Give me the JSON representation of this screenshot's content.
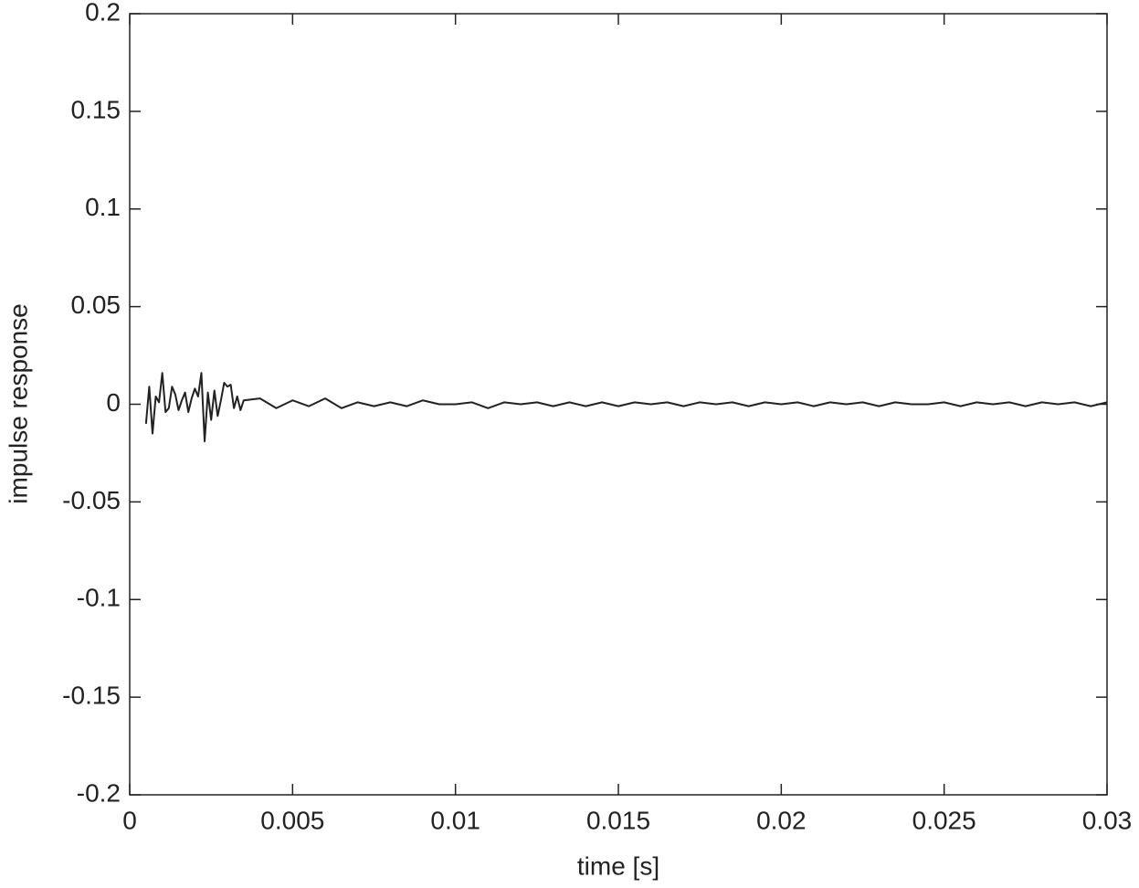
{
  "chart_data": {
    "type": "line",
    "x_label": "time [s]",
    "y_label": "impulse response",
    "x": [
      0.0005,
      0.0006,
      0.0007,
      0.0008,
      0.0009,
      0.001,
      0.0011,
      0.0012,
      0.0013,
      0.0014,
      0.0015,
      0.0016,
      0.0017,
      0.0018,
      0.0019,
      0.002,
      0.0021,
      0.0022,
      0.0023,
      0.0024,
      0.0025,
      0.0026,
      0.0027,
      0.0028,
      0.0029,
      0.003,
      0.0031,
      0.0032,
      0.0033,
      0.0034,
      0.0035,
      0.004,
      0.0045,
      0.005,
      0.0055,
      0.006,
      0.0065,
      0.007,
      0.0075,
      0.008,
      0.0085,
      0.009,
      0.0095,
      0.01,
      0.0105,
      0.011,
      0.0115,
      0.012,
      0.0125,
      0.013,
      0.0135,
      0.014,
      0.0145,
      0.015,
      0.0155,
      0.016,
      0.0165,
      0.017,
      0.0175,
      0.018,
      0.0185,
      0.019,
      0.0195,
      0.02,
      0.0205,
      0.021,
      0.0215,
      0.022,
      0.0225,
      0.023,
      0.0235,
      0.024,
      0.0245,
      0.025,
      0.0255,
      0.026,
      0.0265,
      0.027,
      0.0275,
      0.028,
      0.0285,
      0.029,
      0.0295,
      0.03
    ],
    "series": [
      {
        "color": "#222222",
        "values": [
          -0.01,
          0.009,
          -0.015,
          0.004,
          0.001,
          0.016,
          -0.004,
          -0.002,
          0.009,
          0.005,
          -0.003,
          0.002,
          0.006,
          -0.004,
          0.003,
          0.008,
          0.004,
          0.016,
          -0.019,
          0.006,
          -0.008,
          0.007,
          -0.006,
          0.002,
          0.011,
          0.009,
          0.01,
          -0.002,
          0.004,
          -0.003,
          0.002,
          0.003,
          -0.002,
          0.002,
          -0.001,
          0.003,
          -0.002,
          0.001,
          -0.001,
          0.001,
          -0.001,
          0.002,
          0,
          0,
          0.001,
          -0.002,
          0.001,
          0,
          0.001,
          -0.001,
          0.001,
          -0.001,
          0.001,
          -0.001,
          0.001,
          0,
          0.001,
          -0.001,
          0.001,
          0,
          0.001,
          -0.001,
          0.001,
          0,
          0.001,
          -0.001,
          0.001,
          0,
          0.001,
          -0.001,
          0.001,
          0,
          0,
          0.001,
          -0.001,
          0.001,
          0,
          0.001,
          -0.001,
          0.001,
          0,
          0.001,
          -0.001,
          0.001
        ]
      }
    ],
    "xlim": [
      0,
      0.03
    ],
    "ylim": [
      -0.2,
      0.2
    ],
    "xticks": [
      0,
      0.005,
      0.01,
      0.015,
      0.02,
      0.025,
      0.03
    ],
    "yticks": [
      -0.2,
      -0.15,
      -0.1,
      -0.05,
      0,
      0.05,
      0.1,
      0.15,
      0.2
    ]
  }
}
